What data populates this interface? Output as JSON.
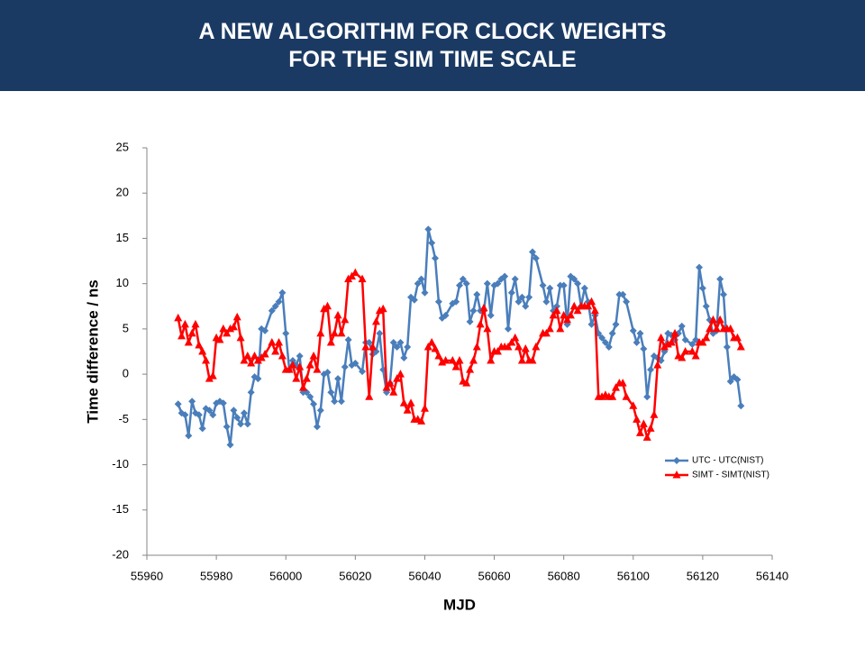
{
  "header": {
    "title": [
      "A NEW ALGORITHM FOR CLOCK WEIGHTS",
      "FOR THE SIM TIME SCALE"
    ]
  },
  "chart_data": {
    "type": "line",
    "xlabel": "MJD",
    "ylabel": "Time difference / ns",
    "x": [
      55969,
      55970,
      55971,
      55972,
      55973,
      55974,
      55975,
      55976,
      55977,
      55978,
      55979,
      55980,
      55981,
      55982,
      55983,
      55984,
      55985,
      55986,
      55987,
      55988,
      55989,
      55990,
      55991,
      55992,
      55993,
      55994,
      55996,
      55997,
      55998,
      55999,
      56000,
      56001,
      56002,
      56003,
      56004,
      56005,
      56006,
      56007,
      56008,
      56009,
      56010,
      56011,
      56012,
      56013,
      56014,
      56015,
      56016,
      56017,
      56018,
      56019,
      56020,
      56022,
      56023,
      56024,
      56025,
      56026,
      56027,
      56028,
      56029,
      56030,
      56031,
      56032,
      56033,
      56034,
      56035,
      56036,
      56037,
      56038,
      56039,
      56040,
      56041,
      56042,
      56043,
      56044,
      56045,
      56046,
      56048,
      56049,
      56050,
      56051,
      56052,
      56053,
      56054,
      56055,
      56056,
      56057,
      56058,
      56059,
      56060,
      56061,
      56062,
      56063,
      56064,
      56065,
      56066,
      56067,
      56068,
      56069,
      56070,
      56071,
      56072,
      56074,
      56075,
      56076,
      56077,
      56078,
      56079,
      56080,
      56081,
      56082,
      56083,
      56084,
      56085,
      56086,
      56087,
      56088,
      56089,
      56090,
      56091,
      56092,
      56093,
      56094,
      56095,
      56096,
      56097,
      56098,
      56100,
      56101,
      56102,
      56103,
      56104,
      56105,
      56106,
      56107,
      56108,
      56109,
      56110,
      56111,
      56112,
      56113,
      56114,
      56115,
      56117,
      56118,
      56119,
      56120,
      56121,
      56122,
      56123,
      56124,
      56125,
      56126,
      56127,
      56128,
      56129,
      56130,
      56131
    ],
    "series": [
      {
        "name": "UTC - UTC(NIST)",
        "color": "#4a7ebb",
        "marker": "diamond",
        "values": [
          -3.3,
          -4.3,
          -4.5,
          -6.8,
          -3,
          -4.3,
          -4.5,
          -6,
          -3.8,
          -4,
          -4.5,
          -3.2,
          -3,
          -3.2,
          -5.8,
          -7.8,
          -4,
          -4.8,
          -5.5,
          -4.3,
          -5.5,
          -2,
          -0.3,
          -0.5,
          5,
          4.8,
          7,
          7.5,
          8,
          9,
          4.5,
          0.5,
          1.5,
          1,
          2,
          -2,
          -2,
          -2.5,
          -3.3,
          -5.8,
          -4,
          0,
          0.2,
          -2,
          -3,
          -0.5,
          -3,
          0.8,
          3.8,
          1,
          1.2,
          0.3,
          3.5,
          3.5,
          2.2,
          2.5,
          4.5,
          0.5,
          -2,
          -1,
          3.5,
          3,
          3.5,
          1.8,
          3,
          8.5,
          8.2,
          10,
          10.5,
          9,
          16,
          14.5,
          12.8,
          8,
          6.2,
          6.5,
          7.8,
          8,
          9.8,
          10.5,
          10,
          5.8,
          7,
          8.8,
          7,
          7,
          10,
          6.5,
          9.8,
          10,
          10.5,
          10.8,
          5,
          9,
          10.5,
          8,
          8.5,
          7.5,
          8.5,
          13.5,
          12.8,
          9.8,
          8,
          9.5,
          7,
          7.5,
          9.8,
          9.8,
          5.5,
          10.8,
          10.5,
          10,
          7.5,
          9.5,
          8,
          5.5,
          6.5,
          4.5,
          4,
          3.5,
          3,
          4.5,
          5.5,
          8.8,
          8.8,
          8,
          4.8,
          3.5,
          4.5,
          2.8,
          -2.5,
          0.5,
          2,
          1.8,
          1.5,
          2.5,
          4.5,
          4.3,
          3.8,
          4.5,
          5.3,
          3.8,
          3.3,
          3.8,
          11.8,
          9.5,
          7.5,
          6,
          4.5,
          4.8,
          10.5,
          8.8,
          3,
          -0.8,
          -0.3,
          -0.6,
          -3.5
        ]
      },
      {
        "name": "SIMT - SIMT(NIST)",
        "color": "#ff0000",
        "marker": "triangle",
        "values": [
          6.2,
          4.2,
          5.5,
          3.5,
          4.5,
          5.5,
          3.2,
          2.5,
          1.5,
          -0.5,
          -0.2,
          4,
          3.8,
          5,
          4.5,
          5,
          5.2,
          6.3,
          4,
          1.5,
          2,
          1.2,
          2,
          1.5,
          1.8,
          2.2,
          3.5,
          2.5,
          3.5,
          2,
          0.5,
          0.5,
          1,
          -0.5,
          0.8,
          -1.5,
          -0.5,
          1,
          2,
          0.5,
          4.5,
          7.2,
          7.5,
          3.5,
          4.5,
          6.5,
          4.5,
          6,
          10.5,
          10.8,
          11.2,
          10.5,
          3,
          -2.5,
          3,
          5.8,
          7,
          7.2,
          -1.5,
          -1,
          -2,
          -0.5,
          0,
          -3.2,
          -4,
          -3.2,
          -5,
          -5,
          -5.2,
          -3.8,
          3,
          3.5,
          2.8,
          2,
          1.3,
          1.5,
          1.5,
          0.8,
          1.5,
          -0.8,
          -1,
          0.5,
          1.5,
          3,
          5.5,
          7.3,
          5,
          1.5,
          2.5,
          2.5,
          3,
          3,
          3,
          3.5,
          4,
          3,
          1.5,
          2.8,
          1.5,
          1.5,
          3,
          4.5,
          4.5,
          5,
          6.5,
          7,
          5,
          6.5,
          6,
          6.5,
          7.5,
          7,
          7.5,
          7.5,
          7.5,
          8,
          7,
          -2.5,
          -2.5,
          -2.3,
          -2.5,
          -2.5,
          -1.5,
          -1,
          -1,
          -2.5,
          -3.5,
          -5,
          -6.5,
          -5.5,
          -7,
          -6,
          -4.5,
          1,
          4,
          3,
          3.3,
          3.5,
          4.5,
          2,
          1.8,
          2.5,
          2.5,
          2,
          3.5,
          3.5,
          4,
          5,
          6,
          5,
          6,
          5,
          5,
          5,
          4,
          4,
          3
        ]
      }
    ],
    "xlim": [
      55960,
      56140
    ],
    "xticks": [
      55960,
      55980,
      56000,
      56020,
      56040,
      56060,
      56080,
      56100,
      56120,
      56140
    ],
    "ylim": [
      -20,
      25
    ],
    "yticks": [
      -20,
      -15,
      -10,
      -5,
      0,
      5,
      10,
      15,
      20,
      25
    ],
    "grid": false,
    "legend": "lower right"
  }
}
